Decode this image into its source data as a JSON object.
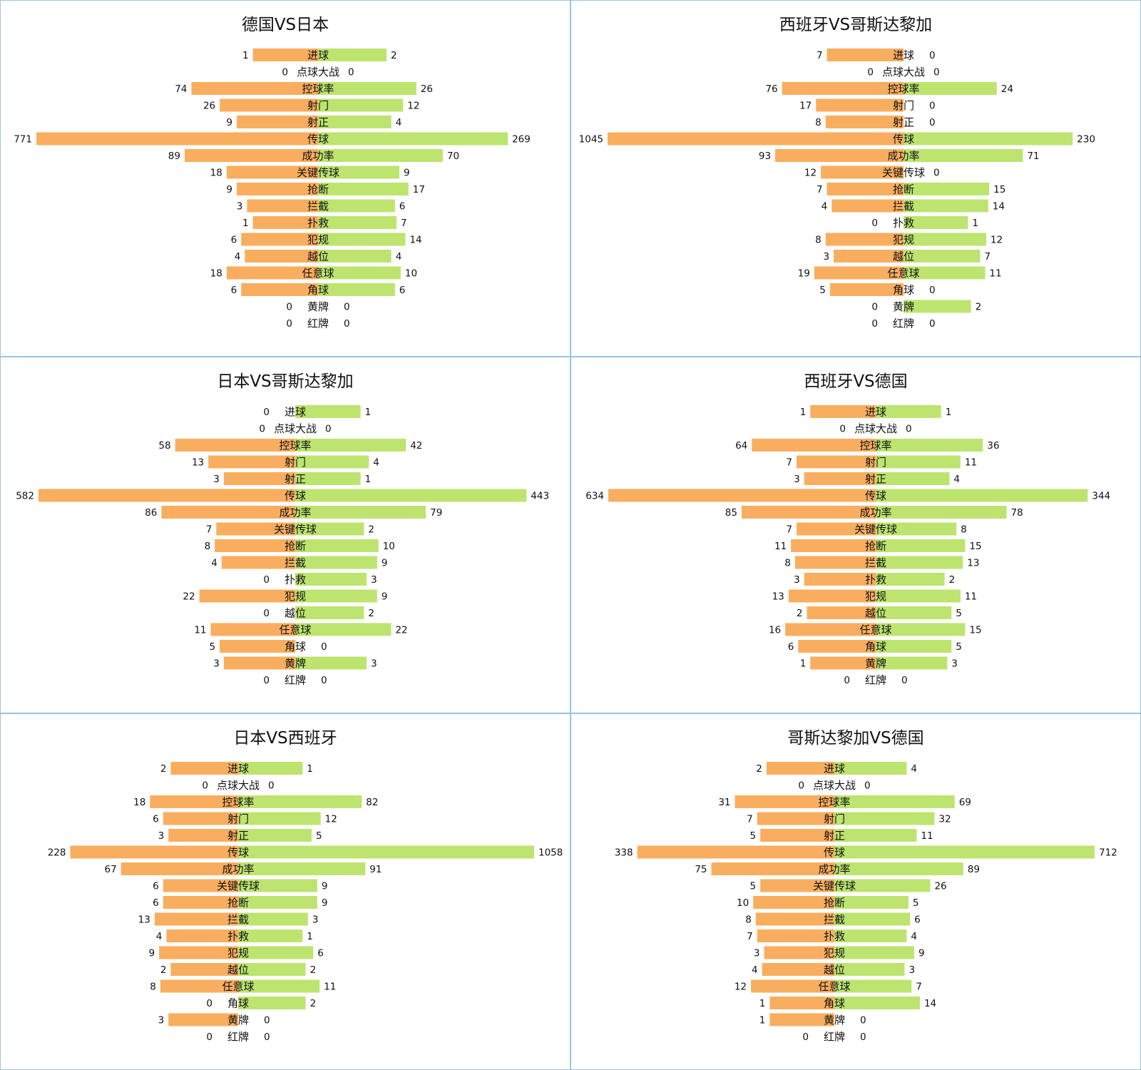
{
  "colors": {
    "team1_bar": "#f9ae5f",
    "team2_bar": "#bde46f",
    "panel_border": "#9cc3e0",
    "text": "#111111"
  },
  "categories": [
    "进球",
    "点球大战",
    "控球率",
    "射门",
    "射正",
    "传球",
    "成功率",
    "关键传球",
    "抢断",
    "拦截",
    "扑救",
    "犯规",
    "越位",
    "任意球",
    "角球",
    "黄牌",
    "红牌"
  ],
  "chart_data": [
    {
      "type": "bar",
      "title": "德国VS日本",
      "categories": [
        "进球",
        "点球大战",
        "控球率",
        "射门",
        "射正",
        "传球",
        "成功率",
        "关键传球",
        "抢断",
        "拦截",
        "扑救",
        "犯规",
        "越位",
        "任意球",
        "角球",
        "黄牌",
        "红牌"
      ],
      "series": [
        {
          "name": "德国",
          "values": [
            1,
            0,
            74,
            26,
            9,
            771,
            89,
            18,
            9,
            3,
            1,
            6,
            4,
            18,
            6,
            0,
            0
          ]
        },
        {
          "name": "日本",
          "values": [
            2,
            0,
            26,
            12,
            4,
            269,
            70,
            9,
            17,
            6,
            7,
            14,
            4,
            10,
            6,
            0,
            0
          ]
        }
      ]
    },
    {
      "type": "bar",
      "title": "西班牙VS哥斯达黎加",
      "categories": [
        "进球",
        "点球大战",
        "控球率",
        "射门",
        "射正",
        "传球",
        "成功率",
        "关键传球",
        "抢断",
        "拦截",
        "扑救",
        "犯规",
        "越位",
        "任意球",
        "角球",
        "黄牌",
        "红牌"
      ],
      "series": [
        {
          "name": "西班牙",
          "values": [
            7,
            0,
            76,
            17,
            8,
            1045,
            93,
            12,
            7,
            4,
            0,
            8,
            3,
            19,
            5,
            0,
            0
          ]
        },
        {
          "name": "哥斯达黎加",
          "values": [
            0,
            0,
            24,
            0,
            0,
            230,
            71,
            0,
            15,
            14,
            1,
            12,
            7,
            11,
            0,
            2,
            0
          ]
        }
      ]
    },
    {
      "type": "bar",
      "title": "日本VS哥斯达黎加",
      "categories": [
        "进球",
        "点球大战",
        "控球率",
        "射门",
        "射正",
        "传球",
        "成功率",
        "关键传球",
        "抢断",
        "拦截",
        "扑救",
        "犯规",
        "越位",
        "任意球",
        "角球",
        "黄牌",
        "红牌"
      ],
      "series": [
        {
          "name": "日本",
          "values": [
            0,
            0,
            58,
            13,
            3,
            582,
            86,
            7,
            8,
            4,
            0,
            22,
            0,
            11,
            5,
            3,
            0
          ]
        },
        {
          "name": "哥斯达黎加",
          "values": [
            1,
            0,
            42,
            4,
            1,
            443,
            79,
            2,
            10,
            9,
            3,
            9,
            2,
            22,
            0,
            3,
            0
          ]
        }
      ]
    },
    {
      "type": "bar",
      "title": "西班牙VS德国",
      "categories": [
        "进球",
        "点球大战",
        "控球率",
        "射门",
        "射正",
        "传球",
        "成功率",
        "关键传球",
        "抢断",
        "拦截",
        "扑救",
        "犯规",
        "越位",
        "任意球",
        "角球",
        "黄牌",
        "红牌"
      ],
      "series": [
        {
          "name": "西班牙",
          "values": [
            1,
            0,
            64,
            7,
            3,
            634,
            85,
            7,
            11,
            8,
            3,
            13,
            2,
            16,
            6,
            1,
            0
          ]
        },
        {
          "name": "德国",
          "values": [
            1,
            0,
            36,
            11,
            4,
            344,
            78,
            8,
            15,
            13,
            2,
            11,
            5,
            15,
            5,
            3,
            0
          ]
        }
      ]
    },
    {
      "type": "bar",
      "title": "日本VS西班牙",
      "categories": [
        "进球",
        "点球大战",
        "控球率",
        "射门",
        "射正",
        "传球",
        "成功率",
        "关键传球",
        "抢断",
        "拦截",
        "扑救",
        "犯规",
        "越位",
        "任意球",
        "角球",
        "黄牌",
        "红牌"
      ],
      "series": [
        {
          "name": "日本",
          "values": [
            2,
            0,
            18,
            6,
            3,
            228,
            67,
            6,
            6,
            13,
            4,
            9,
            2,
            8,
            0,
            3,
            0
          ]
        },
        {
          "name": "西班牙",
          "values": [
            1,
            0,
            82,
            12,
            5,
            1058,
            91,
            9,
            9,
            3,
            1,
            6,
            2,
            11,
            2,
            0,
            0
          ]
        }
      ]
    },
    {
      "type": "bar",
      "title": "哥斯达黎加VS德国",
      "categories": [
        "进球",
        "点球大战",
        "控球率",
        "射门",
        "射正",
        "传球",
        "成功率",
        "关键传球",
        "抢断",
        "拦截",
        "扑救",
        "犯规",
        "越位",
        "任意球",
        "角球",
        "黄牌",
        "红牌"
      ],
      "series": [
        {
          "name": "哥斯达黎加",
          "values": [
            2,
            0,
            31,
            7,
            5,
            338,
            75,
            5,
            10,
            8,
            7,
            3,
            4,
            12,
            1,
            1,
            0
          ]
        },
        {
          "name": "德国",
          "values": [
            4,
            0,
            69,
            32,
            11,
            712,
            89,
            26,
            5,
            6,
            4,
            9,
            3,
            7,
            14,
            0,
            0
          ]
        }
      ]
    }
  ]
}
